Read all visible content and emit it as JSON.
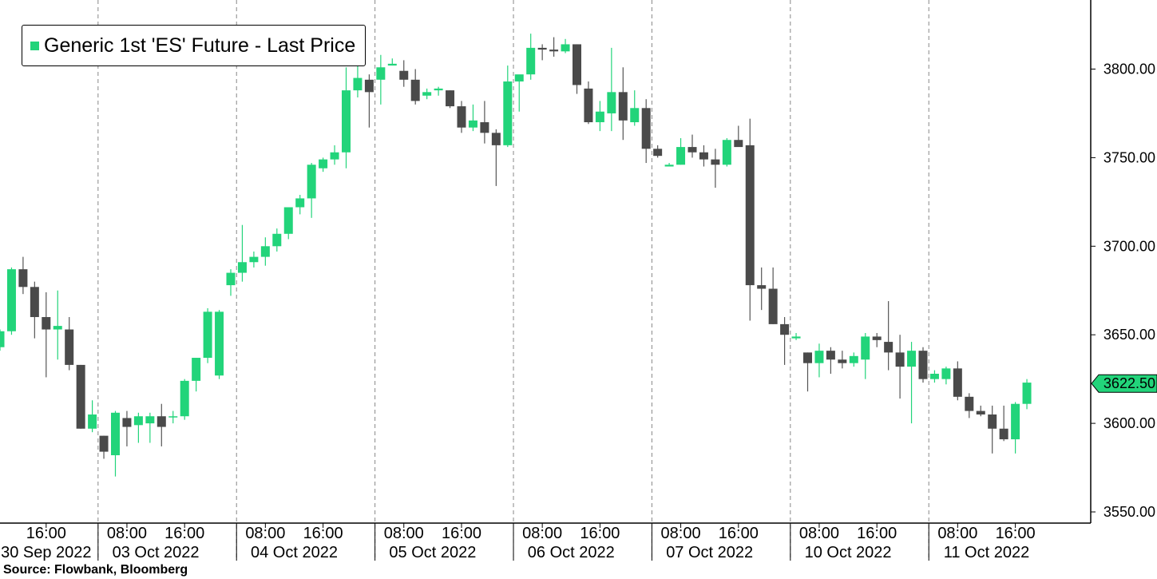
{
  "legend": {
    "label": "Generic 1st 'ES' Future - Last Price"
  },
  "source": "Source: Flowbank, Bloomberg",
  "colors": {
    "up": "#22d47a",
    "down": "#4a4a4a",
    "wick": "#555555",
    "grid": "#888888"
  },
  "chart_data": {
    "type": "candlestick",
    "title": "",
    "ylabel": "",
    "ylim": [
      3544,
      3835
    ],
    "y_ticks": [
      "3550.00",
      "3600.00",
      "3650.00",
      "3700.00",
      "3750.00",
      "3800.00"
    ],
    "last_price": "3622.50",
    "x_time_labels": [
      {
        "slot": 4,
        "text": "16:00"
      },
      {
        "slot": 11,
        "text": "08:00"
      },
      {
        "slot": 16,
        "text": "16:00"
      },
      {
        "slot": 23,
        "text": "08:00"
      },
      {
        "slot": 28,
        "text": "16:00"
      },
      {
        "slot": 35,
        "text": "08:00"
      },
      {
        "slot": 40,
        "text": "16:00"
      },
      {
        "slot": 47,
        "text": "08:00"
      },
      {
        "slot": 52,
        "text": "16:00"
      },
      {
        "slot": 59,
        "text": "08:00"
      },
      {
        "slot": 64,
        "text": "16:00"
      },
      {
        "slot": 71,
        "text": "08:00"
      },
      {
        "slot": 76,
        "text": "16:00"
      },
      {
        "slot": 83,
        "text": "08:00"
      },
      {
        "slot": 88,
        "text": "16:00"
      }
    ],
    "day_labels": [
      {
        "slot": 4,
        "text": "30 Sep 2022"
      },
      {
        "slot": 13.5,
        "text": "03 Oct 2022"
      },
      {
        "slot": 25.5,
        "text": "04 Oct 2022"
      },
      {
        "slot": 37.5,
        "text": "05 Oct 2022"
      },
      {
        "slot": 49.5,
        "text": "06 Oct 2022"
      },
      {
        "slot": 61.5,
        "text": "07 Oct 2022"
      },
      {
        "slot": 73.5,
        "text": "10 Oct 2022"
      },
      {
        "slot": 85.5,
        "text": "11 Oct 2022"
      }
    ],
    "day_dividers": [
      8.5,
      20.5,
      32.5,
      44.5,
      56.5,
      68.5,
      80.5
    ],
    "ohlc": [
      [
        3643,
        3653,
        3641,
        3652
      ],
      [
        3652,
        3688,
        3650,
        3687
      ],
      [
        3687,
        3694,
        3673,
        3677
      ],
      [
        3677,
        3680,
        3648,
        3660
      ],
      [
        3660,
        3674,
        3626,
        3653
      ],
      [
        3653,
        3675,
        3636,
        3655
      ],
      [
        3653,
        3660,
        3630,
        3633
      ],
      [
        3633,
        3633,
        3597,
        3597
      ],
      [
        3597,
        3613,
        3595,
        3605
      ],
      [
        3593,
        3593,
        3580,
        3584
      ],
      [
        3582,
        3607,
        3570,
        3606
      ],
      [
        3603,
        3607,
        3587,
        3598
      ],
      [
        3599,
        3606,
        3589,
        3604
      ],
      [
        3600,
        3606,
        3589,
        3604
      ],
      [
        3604,
        3611,
        3587,
        3598
      ],
      [
        3604,
        3607,
        3600,
        3604
      ],
      [
        3604,
        3625,
        3602,
        3624
      ],
      [
        3624,
        3637,
        3618,
        3637
      ],
      [
        3637,
        3665,
        3634,
        3663
      ],
      [
        3627,
        3664,
        3625,
        3663
      ],
      [
        3678,
        3687,
        3672,
        3685
      ],
      [
        3685,
        3712,
        3680,
        3691
      ],
      [
        3691,
        3697,
        3688,
        3694
      ],
      [
        3694,
        3705,
        3689,
        3700
      ],
      [
        3700,
        3710,
        3697,
        3707
      ],
      [
        3707,
        3722,
        3704,
        3722
      ],
      [
        3722,
        3729,
        3718,
        3727
      ],
      [
        3727,
        3747,
        3716,
        3746
      ],
      [
        3744,
        3750,
        3742,
        3749
      ],
      [
        3749,
        3757,
        3746,
        3753
      ],
      [
        3753,
        3801,
        3744,
        3788
      ],
      [
        3788,
        3803,
        3784,
        3795
      ],
      [
        3794,
        3797,
        3767,
        3787
      ],
      [
        3794,
        3808,
        3780,
        3801
      ],
      [
        3802,
        3806,
        3802,
        3803
      ],
      [
        3799,
        3805,
        3790,
        3794
      ],
      [
        3794,
        3800,
        3780,
        3782
      ],
      [
        3785,
        3789,
        3783,
        3787
      ],
      [
        3788,
        3790,
        3785,
        3789
      ],
      [
        3788,
        3788,
        3778,
        3779
      ],
      [
        3779,
        3782,
        3764,
        3767
      ],
      [
        3767,
        3780,
        3765,
        3771
      ],
      [
        3770,
        3782,
        3758,
        3764
      ],
      [
        3764,
        3766,
        3734,
        3757
      ],
      [
        3757,
        3802,
        3756,
        3793
      ],
      [
        3793,
        3796,
        3776,
        3797
      ],
      [
        3797,
        3820,
        3794,
        3812
      ],
      [
        3812,
        3814,
        3805,
        3811
      ],
      [
        3811,
        3818,
        3807,
        3810
      ],
      [
        3810,
        3817,
        3809,
        3814
      ],
      [
        3814,
        3814,
        3786,
        3791
      ],
      [
        3789,
        3793,
        3769,
        3770
      ],
      [
        3770,
        3782,
        3765,
        3776
      ],
      [
        3775,
        3812,
        3765,
        3787
      ],
      [
        3787,
        3801,
        3760,
        3771
      ],
      [
        3770,
        3788,
        3768,
        3778
      ],
      [
        3778,
        3783,
        3747,
        3755
      ],
      [
        3755,
        3757,
        3750,
        3751
      ],
      [
        3745,
        3747,
        3745,
        3746
      ],
      [
        3746,
        3761,
        3746,
        3756
      ],
      [
        3756,
        3763,
        3750,
        3753
      ],
      [
        3753,
        3757,
        3745,
        3749
      ],
      [
        3749,
        3755,
        3733,
        3746
      ],
      [
        3746,
        3761,
        3745,
        3760
      ],
      [
        3760,
        3768,
        3757,
        3756
      ],
      [
        3757,
        3772,
        3658,
        3678
      ],
      [
        3678,
        3688,
        3664,
        3676
      ],
      [
        3676,
        3688,
        3656,
        3656
      ],
      [
        3656,
        3660,
        3633,
        3650
      ],
      [
        3648,
        3651,
        3647,
        3649
      ],
      [
        3640,
        3640,
        3618,
        3634
      ],
      [
        3634,
        3645,
        3626,
        3641
      ],
      [
        3641,
        3643,
        3628,
        3636
      ],
      [
        3636,
        3641,
        3631,
        3634
      ],
      [
        3634,
        3640,
        3632,
        3638
      ],
      [
        3636,
        3651,
        3625,
        3649
      ],
      [
        3649,
        3651,
        3643,
        3647
      ],
      [
        3646,
        3669,
        3630,
        3640
      ],
      [
        3640,
        3650,
        3614,
        3632
      ],
      [
        3632,
        3646,
        3600,
        3641
      ],
      [
        3641,
        3643,
        3623,
        3625
      ],
      [
        3625,
        3630,
        3623,
        3628
      ],
      [
        3625,
        3632,
        3622,
        3631
      ],
      [
        3631,
        3635,
        3613,
        3615
      ],
      [
        3615,
        3617,
        3603,
        3607
      ],
      [
        3607,
        3610,
        3604,
        3605
      ],
      [
        3605,
        3610,
        3583,
        3597
      ],
      [
        3597,
        3610,
        3590,
        3591
      ],
      [
        3591,
        3612,
        3583,
        3611
      ],
      [
        3611,
        3625,
        3608,
        3623
      ]
    ]
  }
}
